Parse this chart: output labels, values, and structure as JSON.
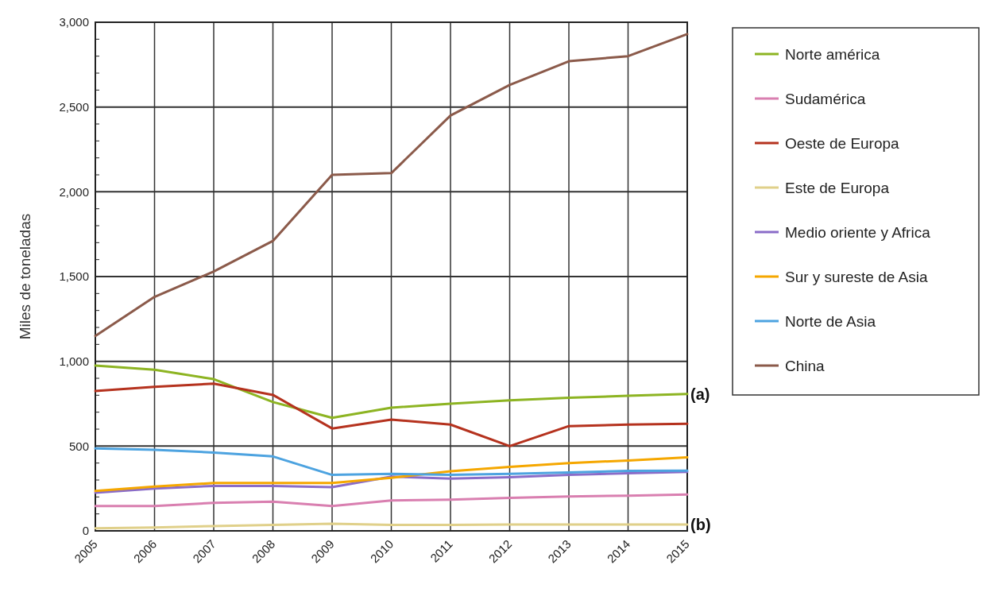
{
  "chart_data": {
    "type": "line",
    "ylabel": "Miles de toneladas",
    "x": [
      2005,
      2006,
      2007,
      2008,
      2009,
      2010,
      2011,
      2012,
      2013,
      2014,
      2015
    ],
    "xlim": [
      2005,
      2015
    ],
    "xticks": [
      2005,
      2006,
      2007,
      2008,
      2009,
      2010,
      2011,
      2012,
      2013,
      2014,
      2015
    ],
    "ylim": [
      0,
      3000
    ],
    "yticks": [
      {
        "value": 0,
        "label": "0"
      },
      {
        "value": 500,
        "label": "500"
      },
      {
        "value": 1000,
        "label": "1,000"
      },
      {
        "value": 1500,
        "label": "1,500"
      },
      {
        "value": 2000,
        "label": "2,000"
      },
      {
        "value": 2500,
        "label": "2,500"
      },
      {
        "value": 3000,
        "label": "3,000"
      }
    ],
    "grid": true,
    "legend": "right",
    "marker": "none",
    "line_style": "solid",
    "series": [
      {
        "name": "Norte américa",
        "color": "#8db422",
        "values": [
          975,
          950,
          895,
          760,
          667,
          727,
          750,
          770,
          785,
          797,
          807
        ]
      },
      {
        "name": "Sudamérica",
        "color": "#d97fb0",
        "values": [
          146,
          146,
          165,
          172,
          146,
          179,
          184,
          195,
          203,
          208,
          214
        ]
      },
      {
        "name": "Oeste de Europa",
        "color": "#b5321e",
        "values": [
          825,
          850,
          868,
          802,
          604,
          656,
          627,
          500,
          618,
          627,
          632
        ]
      },
      {
        "name": "Este de Europa",
        "color": "#e0d08a",
        "values": [
          15,
          20,
          28,
          35,
          42,
          35,
          35,
          37,
          37,
          38,
          38
        ]
      },
      {
        "name": "Medio oriente y Africa",
        "color": "#8a6cc8",
        "values": [
          225,
          250,
          265,
          265,
          258,
          320,
          308,
          316,
          331,
          340,
          348
        ]
      },
      {
        "name": "Sur y sureste de Asia",
        "color": "#f5a700",
        "values": [
          235,
          261,
          282,
          282,
          282,
          313,
          352,
          377,
          400,
          415,
          434
        ]
      },
      {
        "name": "Norte de Asia",
        "color": "#4da3e0",
        "values": [
          486,
          478,
          462,
          439,
          330,
          336,
          330,
          336,
          344,
          354,
          355
        ]
      },
      {
        "name": "China",
        "color": "#8b5a4a",
        "values": [
          1150,
          1380,
          1530,
          1710,
          2100,
          2110,
          2450,
          2630,
          2770,
          2800,
          2930
        ]
      }
    ],
    "annotations": [
      {
        "text": "(a)",
        "x": 2015,
        "y": 807
      },
      {
        "text": "(b)",
        "x": 2015,
        "y": 38
      }
    ]
  }
}
